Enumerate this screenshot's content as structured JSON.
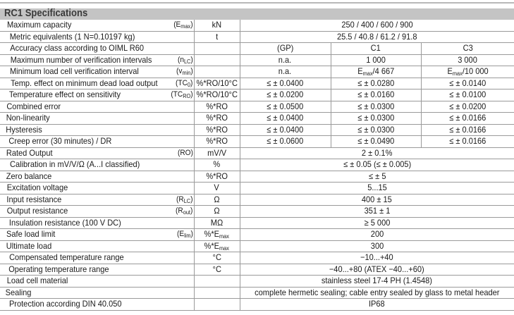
{
  "title": "RC1 Specifications",
  "rows": [
    {
      "label": "Maximum capacity",
      "sym": [
        {
          "t": "(E"
        },
        {
          "t": "max",
          "sub": true
        },
        {
          "t": ")"
        }
      ],
      "unit": [
        {
          "t": "kN"
        }
      ],
      "values": [
        [
          {
            "t": "250 / 400 / 600 / 900"
          }
        ]
      ]
    },
    {
      "label": "Metric equivalents (1 N=0.10197 kg)",
      "sym": [],
      "unit": [
        {
          "t": "t"
        }
      ],
      "values": [
        [
          {
            "t": "25.5 / 40.8 / 61.2 / 91.8"
          }
        ]
      ]
    },
    {
      "label": "Accuracy class according to OIML R60",
      "sym": [],
      "unit": [],
      "values": [
        [
          {
            "t": "(GP)"
          }
        ],
        [
          {
            "t": "C1"
          }
        ],
        [
          {
            "t": "C3"
          }
        ]
      ]
    },
    {
      "label": "Maximum number of verification intervals",
      "sym": [
        {
          "t": "(n"
        },
        {
          "t": "LC",
          "sub": true
        },
        {
          "t": ")"
        }
      ],
      "unit": [],
      "values": [
        [
          {
            "t": "n.a."
          }
        ],
        [
          {
            "t": "1 000"
          }
        ],
        [
          {
            "t": "3 000"
          }
        ]
      ]
    },
    {
      "label": "Minimum load cell verification interval",
      "sym": [
        {
          "t": "(v"
        },
        {
          "t": "min",
          "sub": true
        },
        {
          "t": ")"
        }
      ],
      "unit": [],
      "values": [
        [
          {
            "t": "n.a."
          }
        ],
        [
          {
            "t": "E"
          },
          {
            "t": "max",
            "sub": true
          },
          {
            "t": "/4 667"
          }
        ],
        [
          {
            "t": "E"
          },
          {
            "t": "max",
            "sub": true
          },
          {
            "t": " /10 000"
          }
        ]
      ]
    },
    {
      "label": "Temp. effect on minimum dead load output",
      "sym": [
        {
          "t": "(TC"
        },
        {
          "t": "0",
          "sub": true
        },
        {
          "t": ")"
        }
      ],
      "unit": [
        {
          "t": "%*RO/10°C"
        }
      ],
      "values": [
        [
          {
            "t": "≤ ± 0.0400"
          }
        ],
        [
          {
            "t": "≤ ± 0.0280"
          }
        ],
        [
          {
            "t": "≤ ± 0.0140"
          }
        ]
      ]
    },
    {
      "label": "Temperature effect on sensitivity",
      "sym": [
        {
          "t": "(TC"
        },
        {
          "t": "RO",
          "sub": true
        },
        {
          "t": ")"
        }
      ],
      "unit": [
        {
          "t": "%*RO/10°C"
        }
      ],
      "values": [
        [
          {
            "t": "≤ ± 0.0200"
          }
        ],
        [
          {
            "t": "≤ ± 0.0160"
          }
        ],
        [
          {
            "t": "≤ ± 0.0100"
          }
        ]
      ]
    },
    {
      "label": "Combined error",
      "sym": [],
      "unit": [
        {
          "t": "%*RO"
        }
      ],
      "values": [
        [
          {
            "t": "≤ ± 0.0500"
          }
        ],
        [
          {
            "t": "≤ ± 0.0300"
          }
        ],
        [
          {
            "t": "≤ ± 0.0200"
          }
        ]
      ]
    },
    {
      "label": "Non-linearity",
      "sym": [],
      "unit": [
        {
          "t": "%*RO"
        }
      ],
      "values": [
        [
          {
            "t": "≤ ± 0.0400"
          }
        ],
        [
          {
            "t": "≤ ± 0.0300"
          }
        ],
        [
          {
            "t": "≤ ± 0.0166"
          }
        ]
      ]
    },
    {
      "label": "Hysteresis",
      "sym": [],
      "unit": [
        {
          "t": "%*RO"
        }
      ],
      "values": [
        [
          {
            "t": "≤ ± 0.0400"
          }
        ],
        [
          {
            "t": "≤ ± 0.0300"
          }
        ],
        [
          {
            "t": "≤ ± 0.0166"
          }
        ]
      ]
    },
    {
      "label": "Creep error (30 minutes) / DR",
      "sym": [],
      "unit": [
        {
          "t": "%*RO"
        }
      ],
      "values": [
        [
          {
            "t": "≤ ± 0.0600"
          }
        ],
        [
          {
            "t": "≤ ± 0.0490"
          }
        ],
        [
          {
            "t": "≤ ± 0.0166"
          }
        ]
      ]
    },
    {
      "label": "Rated Output",
      "sym": [
        {
          "t": "(RO)"
        }
      ],
      "unit": [
        {
          "t": "mV/V"
        }
      ],
      "values": [
        [
          {
            "t": "2 ± 0.1%"
          }
        ]
      ]
    },
    {
      "label": "Calibration in mV/V/Ω (A...I classified)",
      "sym": [],
      "unit": [
        {
          "t": "%"
        }
      ],
      "values": [
        [
          {
            "t": "≤ ± 0.05 (≤ ± 0.005)"
          }
        ]
      ]
    },
    {
      "label": "Zero balance",
      "sym": [],
      "unit": [
        {
          "t": "%*RO"
        }
      ],
      "values": [
        [
          {
            "t": "≤ ± 5"
          }
        ]
      ]
    },
    {
      "label": "Excitation voltage",
      "sym": [],
      "unit": [
        {
          "t": "V"
        }
      ],
      "values": [
        [
          {
            "t": "5...15"
          }
        ]
      ]
    },
    {
      "label": "Input resistance",
      "sym": [
        {
          "t": "(R"
        },
        {
          "t": "LC",
          "sub": true
        },
        {
          "t": ")"
        }
      ],
      "unit": [
        {
          "t": "Ω"
        }
      ],
      "values": [
        [
          {
            "t": "400 ± 15"
          }
        ]
      ]
    },
    {
      "label": "Output resistance",
      "sym": [
        {
          "t": "(R"
        },
        {
          "t": "out",
          "sub": true
        },
        {
          "t": ")"
        }
      ],
      "unit": [
        {
          "t": "Ω"
        }
      ],
      "values": [
        [
          {
            "t": "351 ± 1"
          }
        ]
      ]
    },
    {
      "label": "Insulation resistance (100 V DC)",
      "sym": [],
      "unit": [
        {
          "t": "MΩ"
        }
      ],
      "values": [
        [
          {
            "t": "≥ 5 000"
          }
        ]
      ]
    },
    {
      "label": "Safe load limit",
      "sym": [
        {
          "t": "(E"
        },
        {
          "t": "lim",
          "sub": true
        },
        {
          "t": ")"
        }
      ],
      "unit": [
        {
          "t": "%*E"
        },
        {
          "t": "max",
          "sub": true
        }
      ],
      "values": [
        [
          {
            "t": "200"
          }
        ]
      ]
    },
    {
      "label": "Ultimate load",
      "sym": [],
      "unit": [
        {
          "t": "%*E"
        },
        {
          "t": "max",
          "sub": true
        }
      ],
      "values": [
        [
          {
            "t": "300"
          }
        ]
      ]
    },
    {
      "label": "Compensated temperature range",
      "sym": [],
      "unit": [
        {
          "t": "°C"
        }
      ],
      "values": [
        [
          {
            "t": "−10...+40"
          }
        ]
      ]
    },
    {
      "label": "Operating temperature range",
      "sym": [],
      "unit": [
        {
          "t": "°C"
        }
      ],
      "values": [
        [
          {
            "t": "−40...+80 (ATEX −40...+60)"
          }
        ]
      ]
    },
    {
      "label": "Load cell material",
      "sym": [],
      "unit": [],
      "values": [
        [
          {
            "t": "stainless steel 17-4 PH (1.4548)"
          }
        ]
      ]
    },
    {
      "label": "Sealing",
      "sym": [],
      "unit": [],
      "values": [
        [
          {
            "t": "complete hermetic sealing; cable entry sealed by glass to metal header"
          }
        ]
      ]
    },
    {
      "label": "Protection according DIN 40.050",
      "sym": [],
      "unit": [],
      "values": [
        [
          {
            "t": "IP68"
          }
        ]
      ]
    }
  ]
}
